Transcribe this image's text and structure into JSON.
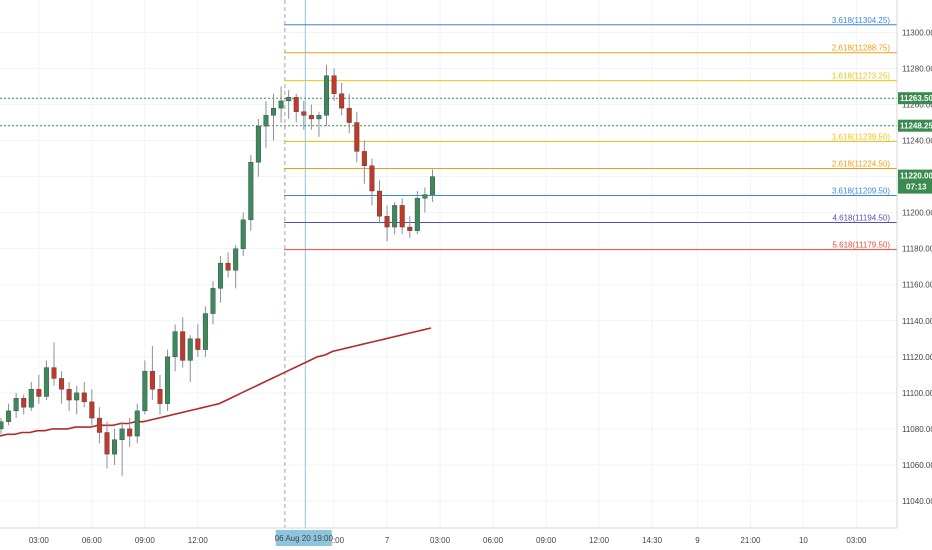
{
  "chart_data": {
    "type": "candlestick",
    "symbol_context": "intraday price chart",
    "colors": {
      "bull": "#3c8a5c",
      "bear": "#c0392b",
      "ma": "#b02a2a",
      "grid": "#f0f3fa",
      "axis_badge": "#3a8b4f",
      "time_badge": "#8fc4dd"
    },
    "y_axis": {
      "range": [
        11025,
        11318
      ],
      "ticks": [
        11040,
        11060,
        11080,
        11100,
        11120,
        11140,
        11160,
        11180,
        11200,
        11220,
        11240,
        11260,
        11280,
        11300
      ],
      "tick_labels": [
        "11040.00",
        "11060.00",
        "11080.00",
        "11100.00",
        "11120.00",
        "11140.00",
        "11160.00",
        "11180.00",
        "11200.00",
        "11220.00",
        "11240.00",
        "11260.00",
        "11280.00",
        "11300.00"
      ]
    },
    "x_axis": {
      "labels": [
        {
          "text": "03:00",
          "idx": 5
        },
        {
          "text": "06:00",
          "idx": 12
        },
        {
          "text": "09:00",
          "idx": 19
        },
        {
          "text": "12:00",
          "idx": 26
        },
        {
          "text": "21:00",
          "idx": 44
        },
        {
          "text": "7",
          "idx": 51
        },
        {
          "text": "03:00",
          "idx": 58
        },
        {
          "text": "06:00",
          "idx": 65
        },
        {
          "text": "09:00",
          "idx": 72
        },
        {
          "text": "12:00",
          "idx": 79
        },
        {
          "text": "14:30",
          "idx": 86
        },
        {
          "text": "9",
          "idx": 92
        },
        {
          "text": "21:00",
          "idx": 99
        },
        {
          "text": "10",
          "idx": 106
        },
        {
          "text": "03:00",
          "idx": 113
        }
      ],
      "time_badge": "06 Aug 20   19:00",
      "time_badge_idx": 40
    },
    "candles": [
      [
        11080,
        11086,
        11077,
        11084
      ],
      [
        11084,
        11094,
        11082,
        11090
      ],
      [
        11090,
        11100,
        11086,
        11097
      ],
      [
        11097,
        11099,
        11088,
        11092
      ],
      [
        11092,
        11106,
        11090,
        11102
      ],
      [
        11102,
        11110,
        11094,
        11098
      ],
      [
        11098,
        11118,
        11096,
        11114
      ],
      [
        11114,
        11128,
        11104,
        11108
      ],
      [
        11108,
        11112,
        11094,
        11102
      ],
      [
        11102,
        11106,
        11090,
        11096
      ],
      [
        11096,
        11104,
        11088,
        11100
      ],
      [
        11100,
        11106,
        11092,
        11095
      ],
      [
        11095,
        11102,
        11082,
        11086
      ],
      [
        11086,
        11092,
        11072,
        11078
      ],
      [
        11078,
        11084,
        11058,
        11066
      ],
      [
        11066,
        11080,
        11060,
        11074
      ],
      [
        11074,
        11084,
        11054,
        11080
      ],
      [
        11080,
        11086,
        11070,
        11076
      ],
      [
        11076,
        11094,
        11072,
        11090
      ],
      [
        11090,
        11118,
        11088,
        11112
      ],
      [
        11112,
        11126,
        11096,
        11102
      ],
      [
        11102,
        11110,
        11088,
        11094
      ],
      [
        11094,
        11124,
        11090,
        11120
      ],
      [
        11120,
        11138,
        11112,
        11134
      ],
      [
        11134,
        11142,
        11114,
        11118
      ],
      [
        11118,
        11132,
        11106,
        11130
      ],
      [
        11130,
        11138,
        11120,
        11124
      ],
      [
        11124,
        11148,
        11120,
        11144
      ],
      [
        11144,
        11162,
        11138,
        11158
      ],
      [
        11158,
        11176,
        11150,
        11172
      ],
      [
        11172,
        11178,
        11164,
        11168
      ],
      [
        11168,
        11182,
        11158,
        11180
      ],
      [
        11180,
        11200,
        11176,
        11196
      ],
      [
        11196,
        11232,
        11190,
        11228
      ],
      [
        11228,
        11252,
        11220,
        11248
      ],
      [
        11248,
        11262,
        11236,
        11254
      ],
      [
        11254,
        11266,
        11240,
        11258
      ],
      [
        11258,
        11270,
        11250,
        11262
      ],
      [
        11262,
        11268,
        11252,
        11264
      ],
      [
        11264,
        11266,
        11250,
        11256
      ],
      [
        11256,
        11262,
        11246,
        11254
      ],
      [
        11254,
        11260,
        11246,
        11252
      ],
      [
        11252,
        11256,
        11242,
        11254
      ],
      [
        11254,
        11282,
        11248,
        11276
      ],
      [
        11276,
        11280,
        11262,
        11266
      ],
      [
        11266,
        11272,
        11254,
        11258
      ],
      [
        11258,
        11266,
        11244,
        11250
      ],
      [
        11250,
        11256,
        11228,
        11234
      ],
      [
        11234,
        11240,
        11216,
        11226
      ],
      [
        11226,
        11230,
        11204,
        11212
      ],
      [
        11212,
        11218,
        11194,
        11198
      ],
      [
        11198,
        11204,
        11184,
        11192
      ],
      [
        11192,
        11206,
        11188,
        11204
      ],
      [
        11204,
        11208,
        11188,
        11192
      ],
      [
        11192,
        11198,
        11186,
        11190
      ],
      [
        11190,
        11212,
        11188,
        11208
      ],
      [
        11208,
        11214,
        11200,
        11210
      ],
      [
        11210,
        11224,
        11206,
        11220
      ]
    ],
    "ma_line": [
      11076,
      11077,
      11077,
      11078,
      11078,
      11079,
      11079,
      11080,
      11080,
      11080,
      11081,
      11081,
      11081,
      11082,
      11082,
      11082,
      11083,
      11083,
      11084,
      11084,
      11085,
      11086,
      11087,
      11088,
      11089,
      11090,
      11091,
      11092,
      11093,
      11094,
      11096,
      11098,
      11100,
      11102,
      11104,
      11106,
      11108,
      11110,
      11112,
      11114,
      11116,
      11118,
      11120,
      11121,
      11123,
      11124,
      11125,
      11126,
      11127,
      11128,
      11129,
      11130,
      11131,
      11132,
      11133,
      11134,
      11135,
      11136
    ],
    "fib_levels": [
      {
        "label": "3.618(11304.25)",
        "value": 11304.25,
        "color": "#3a87d6"
      },
      {
        "label": "2.618(11288.75)",
        "value": 11288.75,
        "color": "#f39c12"
      },
      {
        "label": "1.618(11273.25)",
        "value": 11273.25,
        "color": "#f1c40f"
      },
      {
        "label": "1.618(11239.50)",
        "value": 11239.5,
        "color": "#f1c40f"
      },
      {
        "label": "2.618(11224.50)",
        "value": 11224.5,
        "color": "#f39c12"
      },
      {
        "label": "3.618(11209.50)",
        "value": 11209.5,
        "color": "#3a87d6"
      },
      {
        "label": "4.618(11194.50)",
        "value": 11194.5,
        "color": "#5a4fb0"
      },
      {
        "label": "5.618(11179.50)",
        "value": 11179.5,
        "color": "#e74c3c"
      }
    ],
    "horizontal_lines": [
      {
        "label": "11263.50",
        "value": 11263.5,
        "color": "#3a8b4f"
      },
      {
        "label": "11248.25",
        "value": 11248.25,
        "color": "#3a8b4f"
      }
    ],
    "current_price": {
      "label": "11220.00",
      "countdown": "07:13",
      "value": 11220
    },
    "vertical_markers": [
      {
        "idx": 37.5,
        "color": "#9aa3b5",
        "style": "dashed"
      },
      {
        "idx": 40.2,
        "color": "#8fc4dd",
        "style": "solid"
      }
    ]
  }
}
